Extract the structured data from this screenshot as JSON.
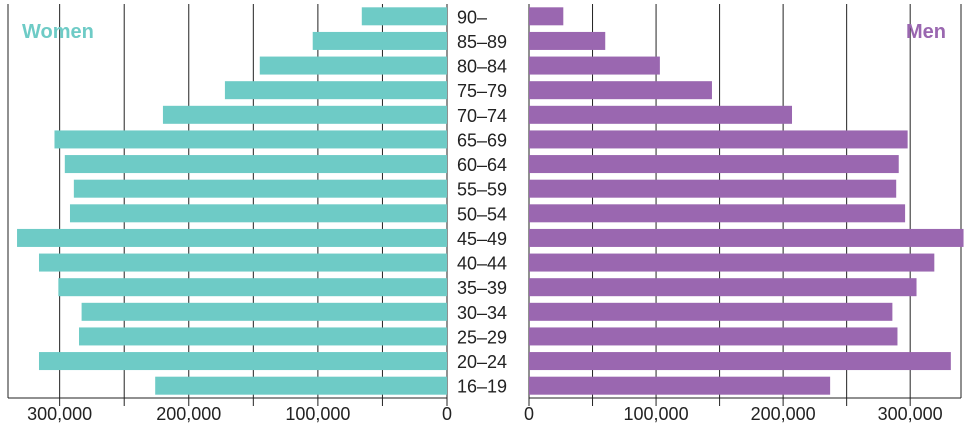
{
  "chart_data": {
    "type": "bar",
    "orientation": "horizontal",
    "layout": "population-pyramid",
    "title": "",
    "xlabel": "",
    "ylabel": "",
    "grid": true,
    "categories": [
      "16–19",
      "20–24",
      "25–29",
      "30–34",
      "35–39",
      "40–44",
      "45–49",
      "50–54",
      "55–59",
      "60–64",
      "65–69",
      "70–74",
      "75–79",
      "80–84",
      "85–89",
      "90–"
    ],
    "series": [
      {
        "name": "Women",
        "side": "left",
        "color": "#6ecbc6",
        "values": [
          226000,
          316000,
          285000,
          283000,
          301000,
          316000,
          333000,
          292000,
          289000,
          296000,
          304000,
          220000,
          172000,
          145000,
          104000,
          66000
        ]
      },
      {
        "name": "Men",
        "side": "right",
        "color": "#9a67b0",
        "values": [
          237000,
          332000,
          290000,
          286000,
          305000,
          319000,
          342000,
          296000,
          289000,
          291000,
          298000,
          207000,
          144000,
          103000,
          60000,
          27000
        ]
      }
    ],
    "xlim": [
      0,
      340000
    ],
    "xticks_left": [
      {
        "value": 300000,
        "label": "300,000"
      },
      {
        "value": 200000,
        "label": "200,000"
      },
      {
        "value": 100000,
        "label": "100,000"
      },
      {
        "value": 0,
        "label": "0"
      }
    ],
    "xticks_right": [
      {
        "value": 0,
        "label": "0"
      },
      {
        "value": 100000,
        "label": "100,000"
      },
      {
        "value": 200000,
        "label": "200,000"
      },
      {
        "value": 300000,
        "label": "300,000"
      }
    ],
    "legend": {
      "women_label": "Women",
      "men_label": "Men",
      "women_placement": "top-left",
      "men_placement": "top-right"
    },
    "colors": {
      "women": "#6ecbc6",
      "men": "#9a67b0",
      "grid": "#222222"
    }
  }
}
